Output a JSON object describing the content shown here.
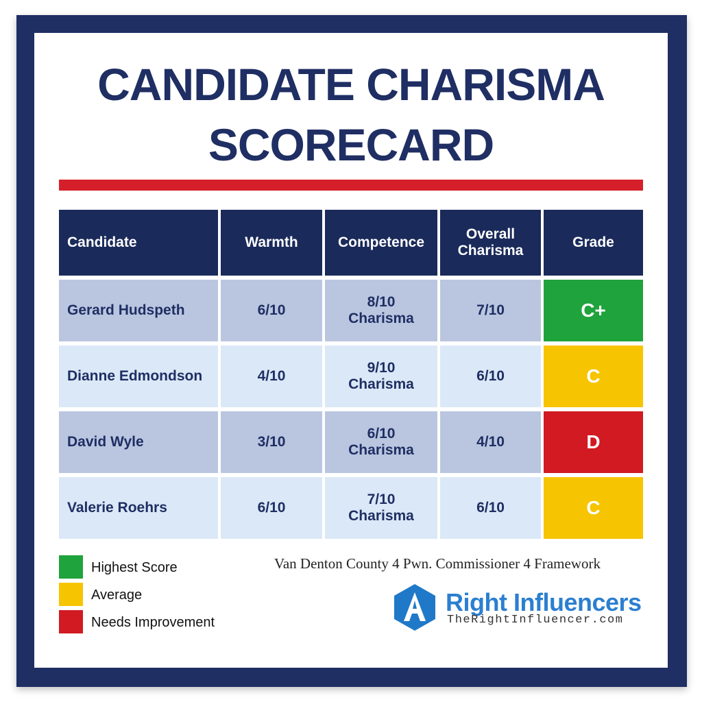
{
  "title": {
    "line1": "CANDIDATE CHARISMA",
    "line2": "SCORECARD"
  },
  "table": {
    "headers": [
      "Candidate",
      "Warmth",
      "Competence",
      "Overall Charisma",
      "Grade"
    ],
    "rows": [
      {
        "candidate": "Gerard Hudspeth",
        "warmth": "6/10",
        "competence_score": "8/10",
        "competence_label": "Charisma",
        "overall": "7/10",
        "grade": "C+",
        "grade_color": "#1fa33c"
      },
      {
        "candidate": "Dianne Edmondson",
        "warmth": "4/10",
        "competence_score": "9/10",
        "competence_label": "Charisma",
        "overall": "6/10",
        "grade": "C",
        "grade_color": "#f6c400"
      },
      {
        "candidate": "David Wyle",
        "warmth": "3/10",
        "competence_score": "6/10",
        "competence_label": "Charisma",
        "overall": "4/10",
        "grade": "D",
        "grade_color": "#d11a22"
      },
      {
        "candidate": "Valerie Roehrs",
        "warmth": "6/10",
        "competence_score": "7/10",
        "competence_label": "Charisma",
        "overall": "6/10",
        "grade": "C",
        "grade_color": "#f6c400"
      }
    ]
  },
  "legend": [
    {
      "label": "Highest Score",
      "color": "#1fa33c"
    },
    {
      "label": "Average",
      "color": "#f6c400"
    },
    {
      "label": "Needs Improvement",
      "color": "#d11a22"
    }
  ],
  "footnote": "Van Denton County 4 Pwn. Commissioner 4 Framework",
  "brand": {
    "name": "Right Influencers",
    "url": "TheRightInfluencer.com",
    "icon": "hexagon-a-logo-icon"
  },
  "colors": {
    "navy": "#1f2e63",
    "accent_red": "#d51f2a",
    "brand_blue": "#2b7fd0"
  }
}
